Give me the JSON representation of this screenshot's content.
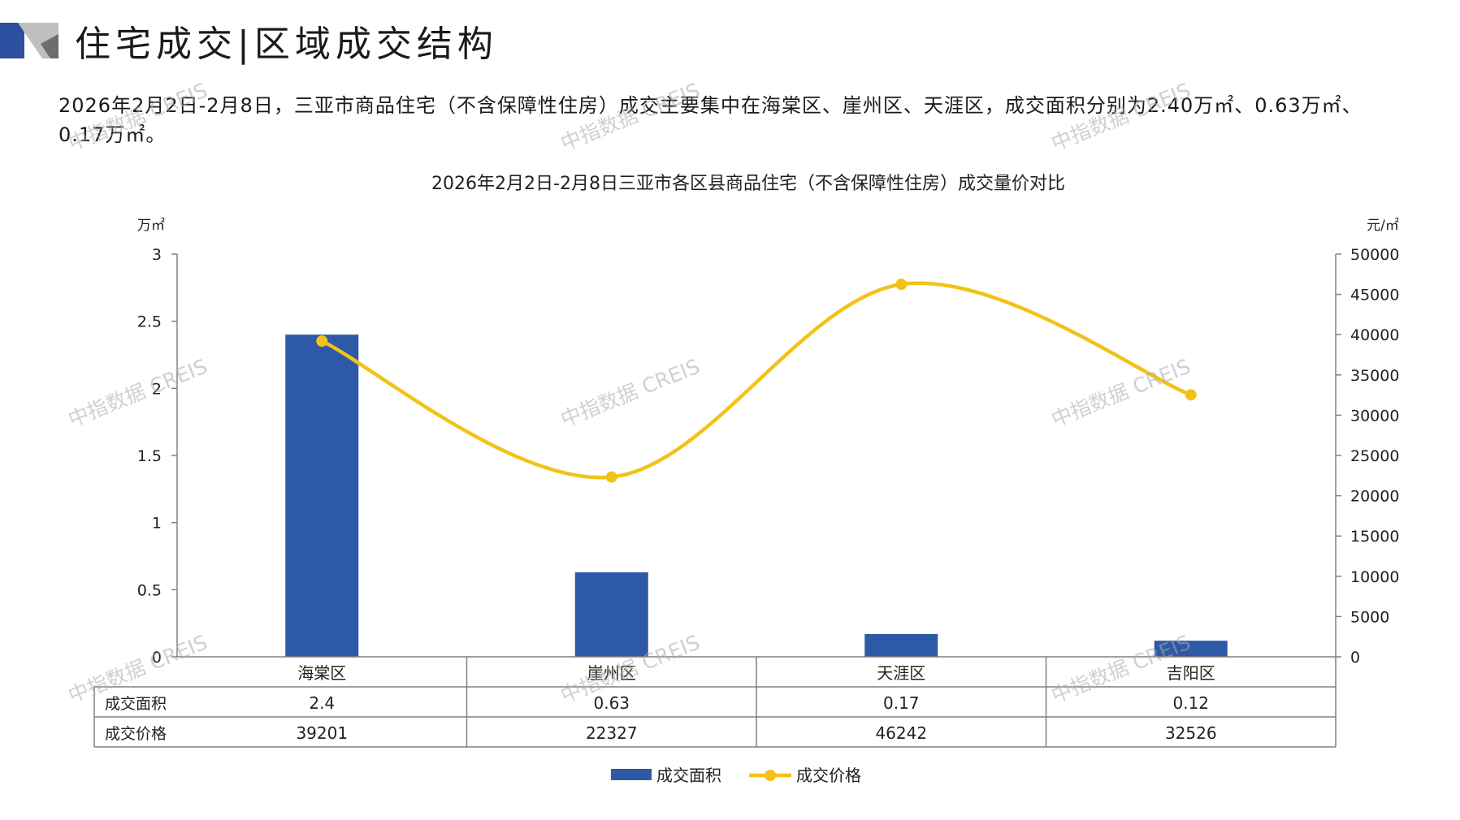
{
  "header": {
    "title": "住宅成交|区域成交结构",
    "summary": "2026年2月2日-2月8日，三亚市商品住宅（不含保障性住房）成交主要集中在海棠区、崖州区、天涯区，成交面积分别为2.40万㎡、0.63万㎡、0.17万㎡。"
  },
  "watermark": {
    "text": "中指数据 CREIS"
  },
  "colors": {
    "bar": "#2E59A7",
    "line": "#F2C218",
    "deco_blue": "#2E4F9F",
    "deco_grey": "#BFBFBF",
    "axis": "#808080"
  },
  "chart_data": {
    "type": "bar",
    "title": "2026年2月2日-2月8日三亚市各区县商品住宅（不含保障性住房）成交量价对比",
    "categories": [
      "海棠区",
      "崖州区",
      "天涯区",
      "吉阳区"
    ],
    "series": [
      {
        "name": "成交面积",
        "type": "bar",
        "axis": "left",
        "values": [
          2.4,
          0.63,
          0.17,
          0.12
        ],
        "labels": [
          "2.4",
          "0.63",
          "0.17",
          "0.12"
        ]
      },
      {
        "name": "成交价格",
        "type": "line",
        "axis": "right",
        "values": [
          39201,
          22327,
          46242,
          32526
        ],
        "labels": [
          "39201",
          "22327",
          "46242",
          "32526"
        ]
      }
    ],
    "left_axis": {
      "unit": "万㎡",
      "min": 0,
      "max": 3,
      "ticks": [
        "0",
        "0.5",
        "1",
        "1.5",
        "2",
        "2.5",
        "3"
      ]
    },
    "right_axis": {
      "unit": "元/㎡",
      "min": 0,
      "max": 50000,
      "ticks": [
        "0",
        "5000",
        "10000",
        "15000",
        "20000",
        "25000",
        "30000",
        "35000",
        "40000",
        "45000",
        "50000"
      ]
    },
    "legend_position": "bottom",
    "data_table": true,
    "grid": false
  }
}
